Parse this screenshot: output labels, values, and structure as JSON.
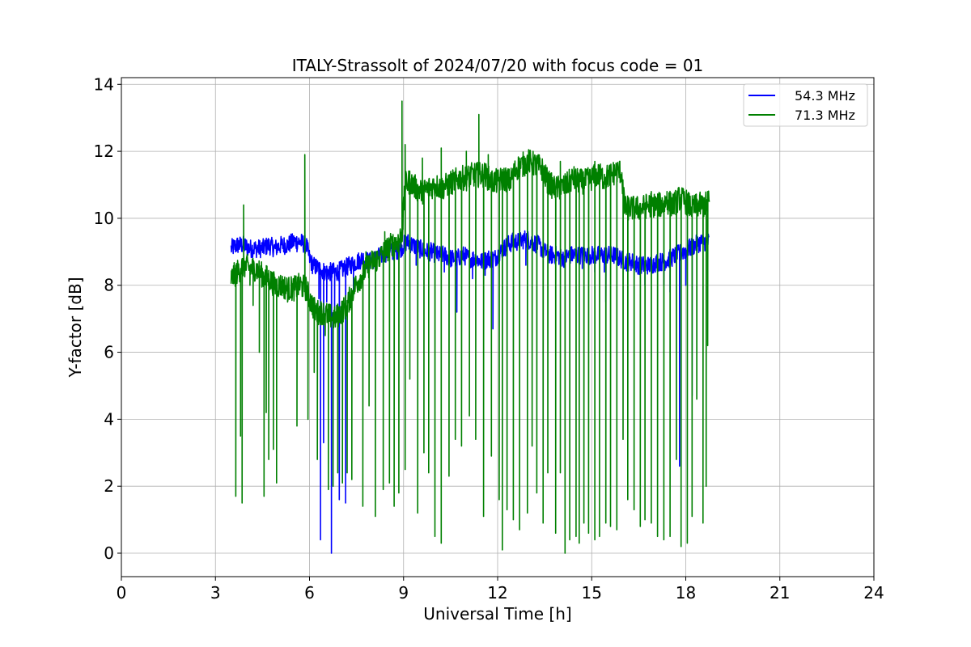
{
  "chart_data": {
    "type": "line",
    "title": "ITALY-Strassolt of 2024/07/20 with focus code = 01",
    "xlabel": "Universal Time [h]",
    "ylabel": "Y-factor [dB]",
    "xlim": [
      0,
      24
    ],
    "ylim": [
      -0.7,
      14.2
    ],
    "xticks": [
      0,
      3,
      6,
      9,
      12,
      15,
      18,
      21,
      24
    ],
    "xtick_labels": [
      "0",
      "3",
      "6",
      "9",
      "12",
      "15",
      "18",
      "21",
      "24"
    ],
    "yticks": [
      0,
      2,
      4,
      6,
      8,
      10,
      12,
      14
    ],
    "ytick_labels": [
      "0",
      "2",
      "4",
      "6",
      "8",
      "10",
      "12",
      "14"
    ],
    "grid": true,
    "legend_position": "top-right",
    "series": [
      {
        "name": "54.3 MHz",
        "color": "#0000ff",
        "x": [
          3.5,
          3.7,
          3.9,
          4.1,
          4.3,
          4.5,
          4.7,
          4.9,
          5.1,
          5.3,
          5.5,
          5.7,
          5.9,
          6.0,
          6.1,
          6.3,
          6.5,
          6.7,
          6.9,
          7.1,
          7.3,
          7.5,
          7.7,
          7.9,
          8.1,
          8.3,
          8.5,
          8.7,
          8.9,
          9.1,
          9.3,
          9.5,
          9.7,
          9.9,
          10.1,
          10.3,
          10.5,
          10.7,
          10.9,
          11.1,
          11.3,
          11.5,
          11.7,
          11.9,
          12.1,
          12.3,
          12.5,
          12.7,
          12.9,
          13.1,
          13.3,
          13.5,
          13.7,
          13.9,
          14.1,
          14.3,
          14.5,
          14.7,
          14.9,
          15.1,
          15.3,
          15.5,
          15.7,
          15.9,
          16.1,
          16.3,
          16.5,
          16.7,
          16.9,
          17.1,
          17.3,
          17.5,
          17.7,
          17.9,
          18.1,
          18.3,
          18.5,
          18.7,
          18.75
        ],
        "y": [
          9.1,
          9.2,
          9.2,
          9.1,
          9.1,
          9.1,
          9.2,
          9.1,
          9.2,
          9.2,
          9.3,
          9.3,
          9.2,
          8.8,
          8.6,
          8.5,
          8.4,
          8.4,
          8.4,
          8.5,
          8.6,
          8.7,
          8.8,
          8.7,
          8.8,
          8.9,
          9.0,
          9.0,
          9.1,
          9.3,
          9.2,
          9.1,
          9.0,
          9.0,
          8.9,
          8.9,
          8.8,
          8.8,
          8.9,
          8.8,
          8.8,
          8.7,
          8.8,
          8.8,
          9.0,
          9.2,
          9.3,
          9.3,
          9.4,
          9.3,
          9.2,
          9.0,
          8.9,
          8.9,
          8.8,
          8.9,
          8.9,
          8.9,
          8.9,
          8.9,
          8.9,
          8.9,
          8.9,
          8.8,
          8.7,
          8.7,
          8.6,
          8.6,
          8.6,
          8.7,
          8.7,
          8.8,
          8.9,
          9.0,
          9.1,
          9.2,
          9.3,
          9.3,
          9.3
        ],
        "dips": [
          [
            5.6,
            9.0
          ],
          [
            6.3,
            7.6
          ],
          [
            6.35,
            0.4
          ],
          [
            6.45,
            3.3
          ],
          [
            6.55,
            7.5
          ],
          [
            6.7,
            0.0
          ],
          [
            6.8,
            7.0
          ],
          [
            6.95,
            1.6
          ],
          [
            7.15,
            1.5
          ],
          [
            7.4,
            7.7
          ],
          [
            9.4,
            8.6
          ],
          [
            10.3,
            8.4
          ],
          [
            10.7,
            7.2
          ],
          [
            11.2,
            8.2
          ],
          [
            11.6,
            8.3
          ],
          [
            11.85,
            6.7
          ],
          [
            12.9,
            8.6
          ],
          [
            14.7,
            8.5
          ],
          [
            15.1,
            8.4
          ],
          [
            15.4,
            8.4
          ],
          [
            15.45,
            7.5
          ],
          [
            16.7,
            8.0
          ],
          [
            17.3,
            8.0
          ],
          [
            17.5,
            7.8
          ],
          [
            17.8,
            2.6
          ],
          [
            18.0,
            8.0
          ],
          [
            18.2,
            4.7
          ]
        ]
      },
      {
        "name": "71.3 MHz",
        "color": "#008000",
        "x": [
          3.5,
          3.7,
          3.9,
          4.1,
          4.3,
          4.5,
          4.7,
          4.9,
          5.1,
          5.3,
          5.5,
          5.7,
          5.9,
          6.0,
          6.2,
          6.4,
          6.6,
          6.8,
          7.0,
          7.2,
          7.4,
          7.6,
          7.8,
          8.0,
          8.2,
          8.4,
          8.6,
          8.8,
          8.95,
          9.05,
          9.2,
          9.4,
          9.6,
          9.8,
          10.0,
          10.2,
          10.4,
          10.6,
          10.8,
          11.0,
          11.2,
          11.4,
          11.6,
          11.8,
          12.0,
          12.2,
          12.4,
          12.6,
          12.8,
          13.0,
          13.2,
          13.4,
          13.6,
          13.8,
          14.0,
          14.2,
          14.4,
          14.6,
          14.8,
          15.0,
          15.2,
          15.4,
          15.6,
          15.8,
          15.95,
          16.05,
          16.2,
          16.4,
          16.6,
          16.8,
          17.0,
          17.2,
          17.4,
          17.6,
          17.8,
          18.0,
          18.2,
          18.4,
          18.6,
          18.75
        ],
        "y": [
          8.2,
          8.4,
          8.6,
          8.5,
          8.5,
          8.3,
          8.2,
          8.0,
          8.0,
          7.9,
          7.9,
          8.0,
          7.9,
          7.6,
          7.2,
          7.2,
          7.1,
          7.0,
          7.2,
          7.4,
          7.9,
          8.2,
          8.5,
          8.7,
          8.8,
          9.0,
          9.2,
          9.3,
          9.5,
          11.0,
          11.1,
          10.9,
          10.8,
          10.9,
          11.0,
          10.9,
          11.0,
          11.1,
          11.2,
          11.2,
          11.3,
          11.3,
          11.3,
          11.1,
          11.1,
          11.2,
          11.1,
          11.5,
          11.6,
          11.7,
          11.6,
          11.5,
          11.1,
          10.9,
          10.9,
          11.0,
          11.2,
          11.1,
          11.1,
          11.2,
          11.3,
          11.2,
          11.3,
          11.4,
          11.4,
          10.3,
          10.3,
          10.3,
          10.3,
          10.4,
          10.4,
          10.4,
          10.5,
          10.4,
          10.6,
          10.5,
          10.3,
          10.4,
          10.4,
          10.5
        ],
        "dips": [
          [
            3.65,
            1.7
          ],
          [
            3.8,
            3.5
          ],
          [
            3.85,
            1.5
          ],
          [
            4.1,
            8.0
          ],
          [
            4.2,
            7.4
          ],
          [
            4.4,
            6.0
          ],
          [
            4.55,
            1.7
          ],
          [
            4.62,
            4.2
          ],
          [
            4.7,
            2.8
          ],
          [
            4.85,
            3.1
          ],
          [
            4.95,
            2.1
          ],
          [
            5.3,
            7.5
          ],
          [
            5.6,
            3.8
          ],
          [
            5.95,
            4.0
          ],
          [
            6.15,
            5.4
          ],
          [
            6.25,
            2.8
          ],
          [
            6.5,
            6.5
          ],
          [
            6.6,
            1.9
          ],
          [
            6.75,
            2.0
          ],
          [
            6.9,
            2.4
          ],
          [
            7.05,
            2.1
          ],
          [
            7.2,
            2.4
          ],
          [
            7.35,
            2.2
          ],
          [
            7.7,
            1.4
          ],
          [
            7.9,
            4.4
          ],
          [
            8.1,
            1.1
          ],
          [
            8.35,
            1.9
          ],
          [
            8.55,
            2.1
          ],
          [
            8.7,
            1.4
          ],
          [
            8.85,
            1.8
          ],
          [
            9.05,
            2.5
          ],
          [
            9.2,
            5.2
          ],
          [
            9.45,
            1.2
          ],
          [
            9.65,
            3.0
          ],
          [
            9.8,
            2.4
          ],
          [
            10.0,
            0.5
          ],
          [
            10.2,
            0.3
          ],
          [
            10.45,
            2.3
          ],
          [
            10.65,
            3.4
          ],
          [
            10.85,
            3.2
          ],
          [
            11.1,
            4.1
          ],
          [
            11.3,
            3.4
          ],
          [
            11.55,
            1.1
          ],
          [
            11.8,
            2.9
          ],
          [
            12.05,
            1.6
          ],
          [
            12.15,
            0.1
          ],
          [
            12.3,
            1.3
          ],
          [
            12.5,
            1.0
          ],
          [
            12.7,
            0.7
          ],
          [
            12.95,
            1.2
          ],
          [
            13.1,
            3.2
          ],
          [
            13.25,
            1.8
          ],
          [
            13.45,
            0.9
          ],
          [
            13.6,
            2.4
          ],
          [
            13.85,
            0.6
          ],
          [
            14.0,
            2.4
          ],
          [
            14.15,
            0.0
          ],
          [
            14.3,
            0.4
          ],
          [
            14.5,
            0.5
          ],
          [
            14.6,
            0.3
          ],
          [
            14.75,
            0.9
          ],
          [
            14.9,
            0.6
          ],
          [
            15.1,
            0.4
          ],
          [
            15.25,
            0.5
          ],
          [
            15.45,
            0.9
          ],
          [
            15.6,
            0.8
          ],
          [
            15.8,
            0.7
          ],
          [
            16.0,
            3.4
          ],
          [
            16.15,
            1.6
          ],
          [
            16.35,
            1.3
          ],
          [
            16.55,
            0.8
          ],
          [
            16.7,
            1.0
          ],
          [
            16.9,
            0.9
          ],
          [
            17.1,
            0.5
          ],
          [
            17.3,
            0.4
          ],
          [
            17.5,
            0.5
          ],
          [
            17.7,
            2.8
          ],
          [
            17.85,
            0.2
          ],
          [
            18.05,
            0.3
          ],
          [
            18.2,
            1.1
          ],
          [
            18.35,
            4.6
          ],
          [
            18.55,
            0.9
          ],
          [
            18.65,
            2.0
          ],
          [
            18.7,
            6.2
          ]
        ],
        "spikes": [
          [
            3.9,
            10.4
          ],
          [
            5.85,
            11.9
          ],
          [
            7.8,
            9.0
          ],
          [
            8.4,
            9.6
          ],
          [
            8.95,
            13.5
          ],
          [
            9.05,
            12.2
          ],
          [
            9.6,
            11.8
          ],
          [
            10.2,
            12.1
          ],
          [
            11.0,
            12.0
          ],
          [
            11.4,
            13.1
          ],
          [
            11.7,
            11.9
          ],
          [
            12.8,
            11.8
          ],
          [
            13.0,
            11.9
          ],
          [
            14.0,
            11.7
          ],
          [
            15.1,
            11.7
          ],
          [
            16.9,
            10.8
          ],
          [
            17.4,
            10.8
          ],
          [
            18.7,
            10.8
          ]
        ]
      }
    ]
  }
}
